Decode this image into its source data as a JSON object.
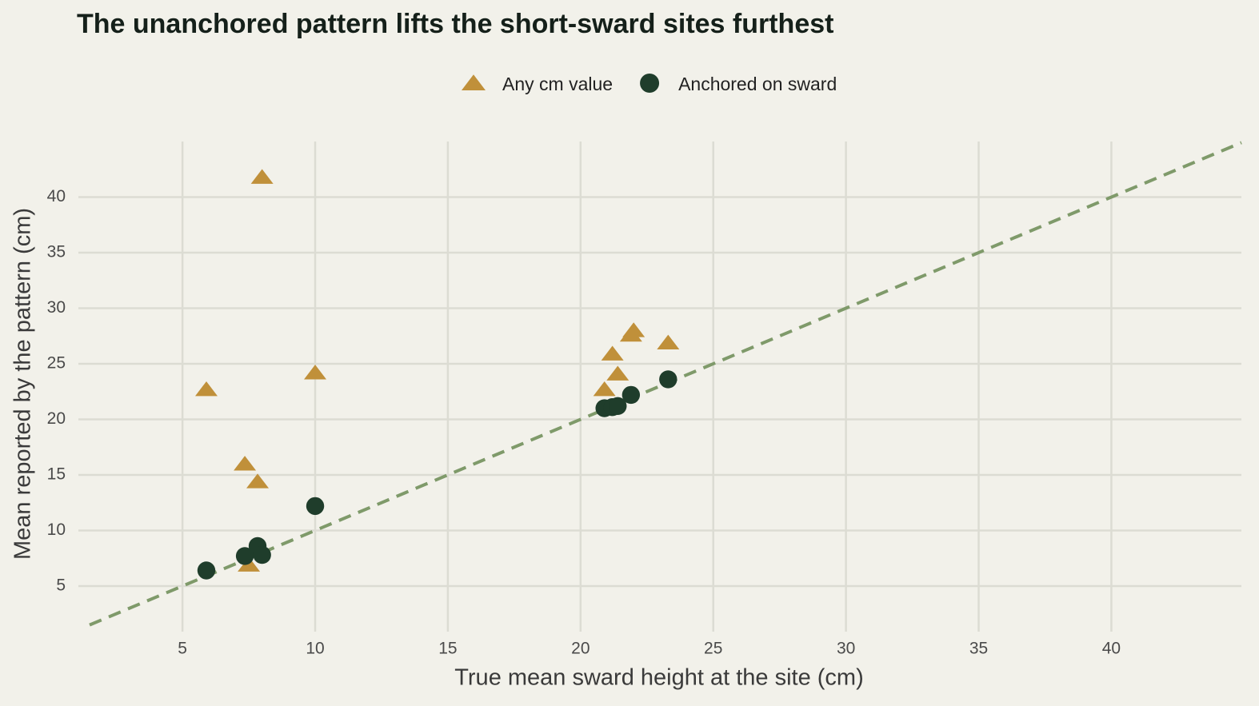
{
  "chart_data": {
    "type": "scatter",
    "title": "The unanchored pattern lifts the short-sward sites furthest",
    "xlabel": "True mean sward height at the site (cm)",
    "ylabel": "Mean reported by the pattern (cm)",
    "xlim": [
      1.5,
      44.9
    ],
    "ylim": [
      1.4,
      45
    ],
    "xticks": [
      5,
      10,
      15,
      20,
      25,
      30,
      35,
      40
    ],
    "yticks": [
      5,
      10,
      15,
      20,
      25,
      30,
      35,
      40
    ],
    "grid": true,
    "legend": "top",
    "identity_line": true,
    "identity_color": "#7f9a6a",
    "series": [
      {
        "name": "Any cm value",
        "color": "#c0903a",
        "marker": "triangle",
        "x": [
          5.9,
          8.0,
          10.0,
          7.35,
          7.83,
          7.5,
          20.9,
          21.2,
          21.4,
          21.9,
          22.0,
          23.3
        ],
        "values": [
          22.7,
          41.8,
          24.2,
          16.0,
          14.4,
          6.9,
          22.7,
          25.9,
          24.1,
          27.6,
          28.0,
          26.9
        ]
      },
      {
        "name": "Anchored on sward",
        "color": "#1f3d2b",
        "marker": "circle",
        "x": [
          5.9,
          7.35,
          7.83,
          8.0,
          10.0,
          20.9,
          21.2,
          21.4,
          21.9,
          23.3
        ],
        "values": [
          6.4,
          7.7,
          8.6,
          7.8,
          12.2,
          21.0,
          21.1,
          21.2,
          22.2,
          23.6
        ]
      }
    ]
  }
}
